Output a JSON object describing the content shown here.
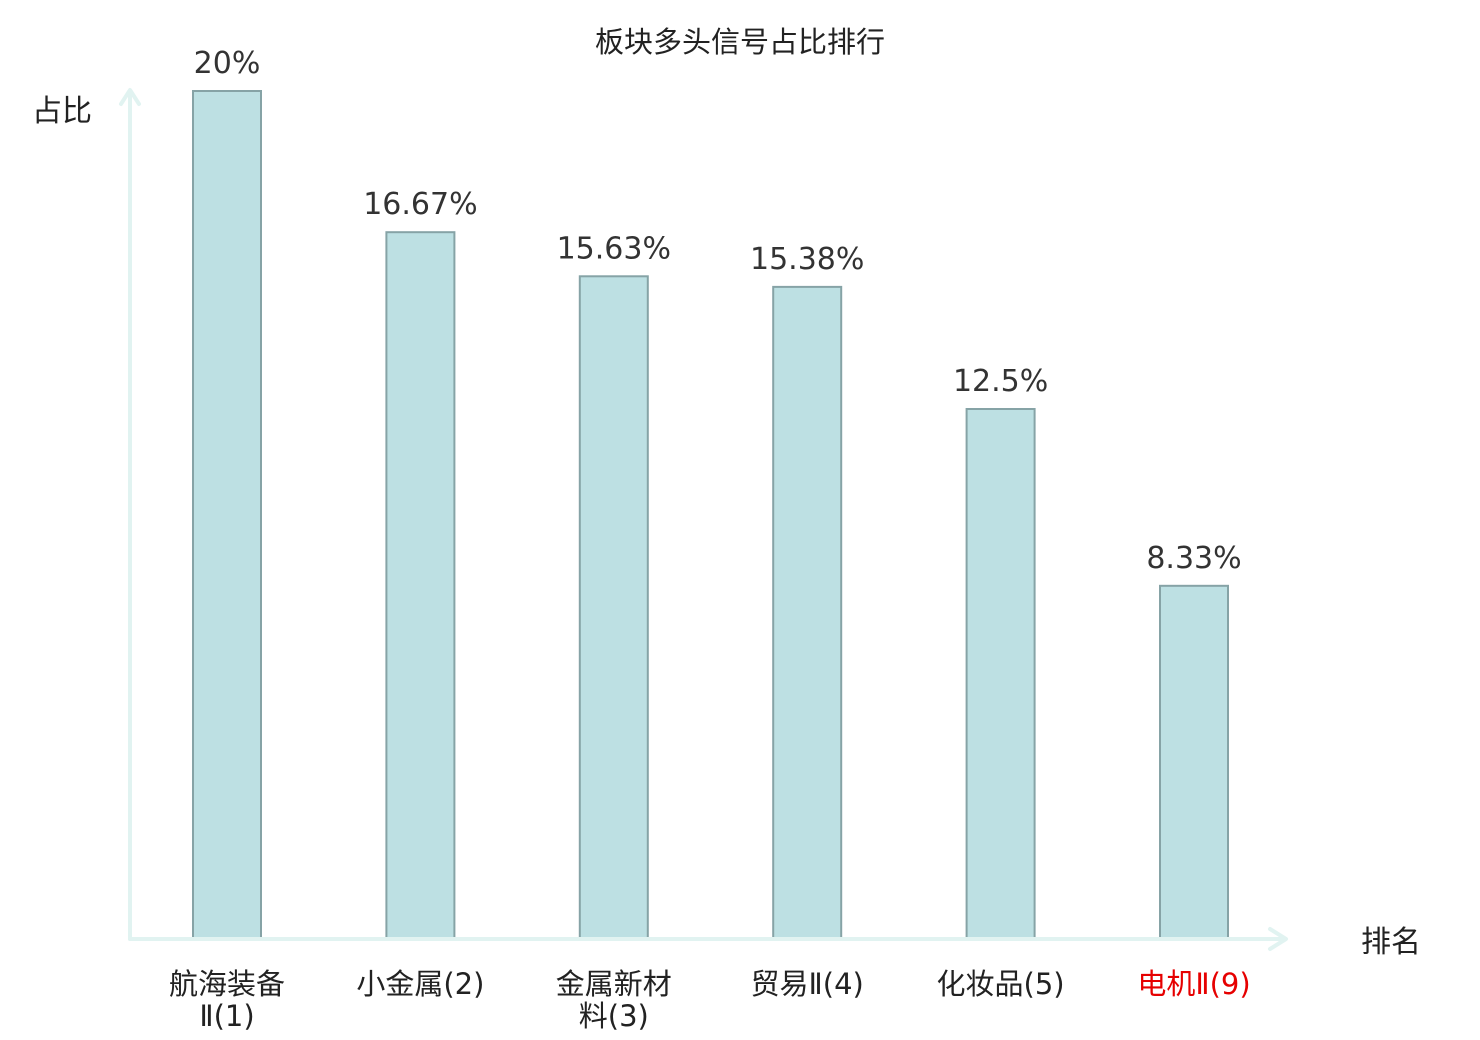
{
  "chart_data": {
    "type": "bar",
    "title": "板块多头信号占比排行",
    "xlabel": "排名",
    "ylabel": "占比",
    "categories": [
      {
        "label": "航海装备Ⅱ(1)",
        "lines": [
          "航海装备",
          "Ⅱ(1)"
        ],
        "highlight": false
      },
      {
        "label": "小金属(2)",
        "lines": [
          "小金属(2)"
        ],
        "highlight": false
      },
      {
        "label": "金属新材料(3)",
        "lines": [
          "金属新材",
          "料(3)"
        ],
        "highlight": false
      },
      {
        "label": "贸易Ⅱ(4)",
        "lines": [
          "贸易Ⅱ(4)"
        ],
        "highlight": false
      },
      {
        "label": "化妆品(5)",
        "lines": [
          "化妆品(5)"
        ],
        "highlight": false
      },
      {
        "label": "电机Ⅱ(9)",
        "lines": [
          "电机Ⅱ(9)"
        ],
        "highlight": true
      }
    ],
    "values": [
      20,
      16.67,
      15.63,
      15.38,
      12.5,
      8.33
    ],
    "value_labels": [
      "20%",
      "16.67%",
      "15.63%",
      "15.38%",
      "12.5%",
      "8.33%"
    ],
    "ylim": [
      0,
      20
    ],
    "grid": false,
    "legend": "none"
  },
  "colors": {
    "bar_fill": "#bde0e3",
    "bar_stroke": "#86a3a6",
    "axis": "#e1f3f1",
    "text": "#222222",
    "highlight_text": "#e60000"
  }
}
